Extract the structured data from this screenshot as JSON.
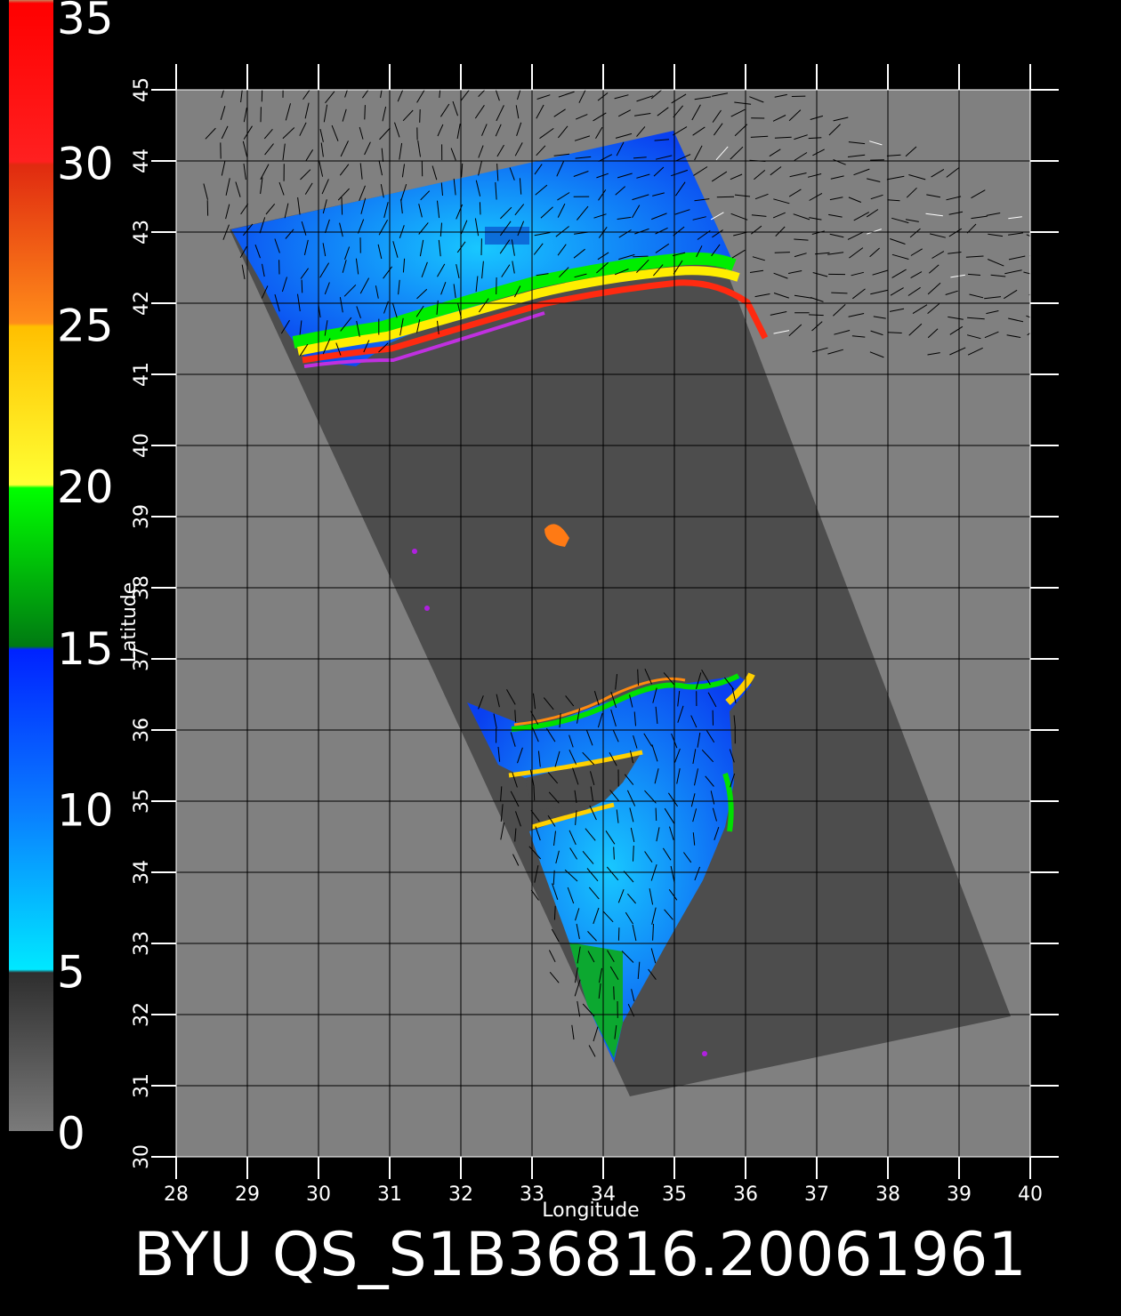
{
  "colorbar": {
    "tick_labels": [
      "35",
      "30",
      "25",
      "20",
      "15",
      "10",
      "5",
      "0"
    ],
    "stops": [
      {
        "value": 0,
        "color": "#7a7a7a"
      },
      {
        "value": 4.9,
        "color": "#2e2e2e"
      },
      {
        "value": 5,
        "color": "#00e8ff"
      },
      {
        "value": 10,
        "color": "#0a7cff"
      },
      {
        "value": 14.9,
        "color": "#0022ff"
      },
      {
        "value": 15,
        "color": "#007a12"
      },
      {
        "value": 19.9,
        "color": "#00ff00"
      },
      {
        "value": 20,
        "color": "#ffff33"
      },
      {
        "value": 24.9,
        "color": "#ffbf00"
      },
      {
        "value": 25,
        "color": "#ff8c1a"
      },
      {
        "value": 29.9,
        "color": "#e02a10"
      },
      {
        "value": 30,
        "color": "#ff2020"
      },
      {
        "value": 34.9,
        "color": "#ff0000"
      },
      {
        "value": 35,
        "color": "#c8805a"
      }
    ]
  },
  "map": {
    "lon_ticks": [
      "28",
      "29",
      "30",
      "31",
      "32",
      "33",
      "34",
      "35",
      "36",
      "37",
      "38",
      "39",
      "40"
    ],
    "lat_ticks": [
      "30",
      "31",
      "32",
      "33",
      "34",
      "35",
      "36",
      "37",
      "38",
      "39",
      "40",
      "41",
      "42",
      "43",
      "44",
      "45"
    ],
    "xlabel": "Longitude",
    "ylabel": "Latitude",
    "lon_range": [
      28,
      40
    ],
    "lat_range": [
      30,
      45
    ],
    "colors": {
      "background": "#808080",
      "swath": "#4d4d4d",
      "land_no_data": "#808080",
      "grid": "#000000",
      "wind_barb": "#000000"
    }
  },
  "title": "BYU  QS_S1B36816.20061961"
}
